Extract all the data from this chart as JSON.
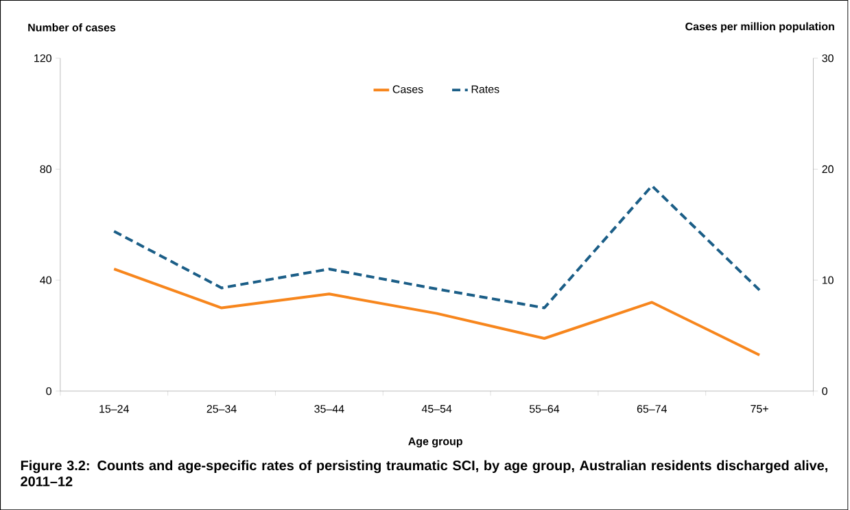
{
  "chart_data": {
    "type": "line",
    "categories": [
      "15–24",
      "25–34",
      "35–44",
      "45–54",
      "55–64",
      "65–74",
      "75+"
    ],
    "series": [
      {
        "name": "Cases",
        "color": "#f7861d",
        "values": [
          44,
          30,
          35,
          28,
          19,
          32,
          13
        ],
        "line_style": "solid"
      },
      {
        "name": "Rates",
        "color": "#1b5e87",
        "values": [
          14.4,
          9.3,
          11.0,
          9.2,
          7.5,
          18.5,
          9.1
        ],
        "line_style": "dashed",
        "axis": "y2"
      }
    ],
    "xlabel": "Age group",
    "ylabel": "Number of cases",
    "y2label": "Cases per million population",
    "ylim": [
      0,
      120
    ],
    "yticks": [
      0,
      40,
      80,
      120
    ],
    "y2lim": [
      0,
      30
    ],
    "y2ticks": [
      0,
      10,
      20,
      30
    ],
    "legend": "top",
    "grid": false,
    "annotations": [
      "Figure 3.2: Counts and age-specific rates of persisting traumatic SCI, by age group, Australian residents discharged alive, 2011–12"
    ]
  }
}
